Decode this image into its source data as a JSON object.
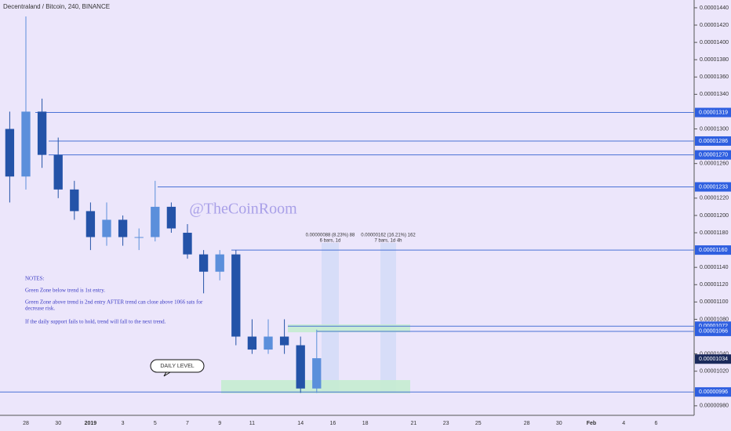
{
  "chart_data": {
    "type": "candlestick",
    "title": "Decentraland / Bitcoin, 240, BINANCE",
    "watermark": "@TheCoinRoom",
    "categories": [
      null,
      "28",
      null,
      "30",
      null,
      "2019",
      null,
      "3",
      null,
      "5",
      null,
      "7",
      null,
      "9",
      null,
      "11",
      null,
      null,
      "14",
      null,
      "16",
      null,
      "18",
      null,
      null,
      "21",
      null,
      "23",
      null,
      "25",
      null,
      null,
      "28",
      null,
      "30",
      null,
      "Feb",
      null,
      "4",
      null,
      "6",
      null,
      null
    ],
    "open": [
      1.3e-05,
      1.245e-05,
      1.32e-05,
      1.27e-05,
      1.23e-05,
      1.205e-05,
      1.175e-05,
      1.195e-05,
      1.175e-05,
      1.175e-05,
      1.21e-05,
      1.18e-05,
      1.155e-05,
      1.135e-05,
      1.155e-05,
      1.06e-05,
      1.045e-05,
      1.06e-05,
      1.05e-05,
      1e-05,
      null,
      null,
      null,
      null,
      null,
      null,
      null,
      null,
      null,
      null,
      null,
      null,
      null,
      null,
      null,
      null,
      null,
      null,
      null,
      null,
      null,
      null,
      null
    ],
    "high": [
      1.32e-05,
      1.43e-05,
      1.335e-05,
      1.29e-05,
      1.24e-05,
      1.215e-05,
      1.215e-05,
      1.2e-05,
      1.185e-05,
      1.24e-05,
      1.215e-05,
      1.19e-05,
      1.16e-05,
      1.16e-05,
      1.16e-05,
      1.08e-05,
      1.08e-05,
      1.08e-05,
      1.06e-05,
      1.068e-05,
      null,
      null,
      null,
      null,
      null,
      null,
      null,
      null,
      null,
      null,
      null,
      null,
      null,
      null,
      null,
      null,
      null,
      null,
      null,
      null,
      null,
      null,
      null
    ],
    "low": [
      1.215e-05,
      1.23e-05,
      1.255e-05,
      1.22e-05,
      1.195e-05,
      1.16e-05,
      1.165e-05,
      1.165e-05,
      1.16e-05,
      1.17e-05,
      1.18e-05,
      1.15e-05,
      1.11e-05,
      1.125e-05,
      1.05e-05,
      1.04e-05,
      1.04e-05,
      1.04e-05,
      9.95e-06,
      9.95e-06,
      null,
      null,
      null,
      null,
      null,
      null,
      null,
      null,
      null,
      null,
      null,
      null,
      null,
      null,
      null,
      null,
      null,
      null,
      null,
      null,
      null,
      null,
      null
    ],
    "close": [
      1.245e-05,
      1.32e-05,
      1.27e-05,
      1.23e-05,
      1.205e-05,
      1.175e-05,
      1.195e-05,
      1.175e-05,
      1.175e-05,
      1.21e-05,
      1.185e-05,
      1.155e-05,
      1.135e-05,
      1.155e-05,
      1.06e-05,
      1.045e-05,
      1.06e-05,
      1.05e-05,
      1e-05,
      1.035e-05,
      null,
      null,
      null,
      null,
      null,
      null,
      null,
      null,
      null,
      null,
      null,
      null,
      null,
      null,
      null,
      null,
      null,
      null,
      null,
      null,
      null,
      null,
      null
    ],
    "up_color": "#5b8fdb",
    "down_color": "#2453a8",
    "ylim": [
      9.69e-06,
      1.449e-05
    ],
    "yticks": [
      {
        "value": 1.44e-05,
        "label": "0.00001440"
      },
      {
        "value": 1.42e-05,
        "label": "0.00001420"
      },
      {
        "value": 1.4e-05,
        "label": "0.00001400"
      },
      {
        "value": 1.38e-05,
        "label": "0.00001380"
      },
      {
        "value": 1.36e-05,
        "label": "0.00001360"
      },
      {
        "value": 1.34e-05,
        "label": "0.00001340"
      },
      {
        "value": 1.3e-05,
        "label": "0.00001300"
      },
      {
        "value": 1.26e-05,
        "label": "0.00001260"
      },
      {
        "value": 1.22e-05,
        "label": "0.00001220"
      },
      {
        "value": 1.2e-05,
        "label": "0.00001200"
      },
      {
        "value": 1.18e-05,
        "label": "0.00001180"
      },
      {
        "value": 1.14e-05,
        "label": "0.00001140"
      },
      {
        "value": 1.12e-05,
        "label": "0.00001120"
      },
      {
        "value": 1.1e-05,
        "label": "0.00001100"
      },
      {
        "value": 1.08e-05,
        "label": "0.00001080"
      },
      {
        "value": 1.04e-05,
        "label": "0.00001040"
      },
      {
        "value": 1.02e-05,
        "label": "0.00001020"
      },
      {
        "value": 9.8e-06,
        "label": "0.00000980"
      }
    ],
    "levels": [
      {
        "value": 1.319e-05,
        "label": "0.00001319"
      },
      {
        "value": 1.286e-05,
        "label": "0.00001286"
      },
      {
        "value": 1.27e-05,
        "label": "0.00001270"
      },
      {
        "value": 1.233e-05,
        "label": "0.00001233"
      },
      {
        "value": 1.16e-05,
        "label": "0.00001160"
      },
      {
        "value": 1.072e-05,
        "label": "0.00001072"
      },
      {
        "value": 1.066e-05,
        "label": "0.00001066"
      },
      {
        "value": 9.96e-06,
        "label": "0.00000996"
      }
    ],
    "last_price": {
      "value": 1.034e-05,
      "label": "0.00001034"
    },
    "measures": [
      {
        "line1": "0.00000088 (8.23%) 88",
        "line2": "6 bars, 1d"
      },
      {
        "line1": "0.00000162 (16.21%) 162",
        "line2": "7 bars, 1d 4h"
      }
    ],
    "callout": "DAILY LEVEL",
    "notes": [
      "NOTES:",
      "Green Zone below trend is 1st entry.",
      "Green Zone above trend is 2nd entry AFTER trend can close above 1066 sats for",
      "decrease risk.",
      "If the daily support fails to hold, trend will fall to the next trend."
    ]
  }
}
